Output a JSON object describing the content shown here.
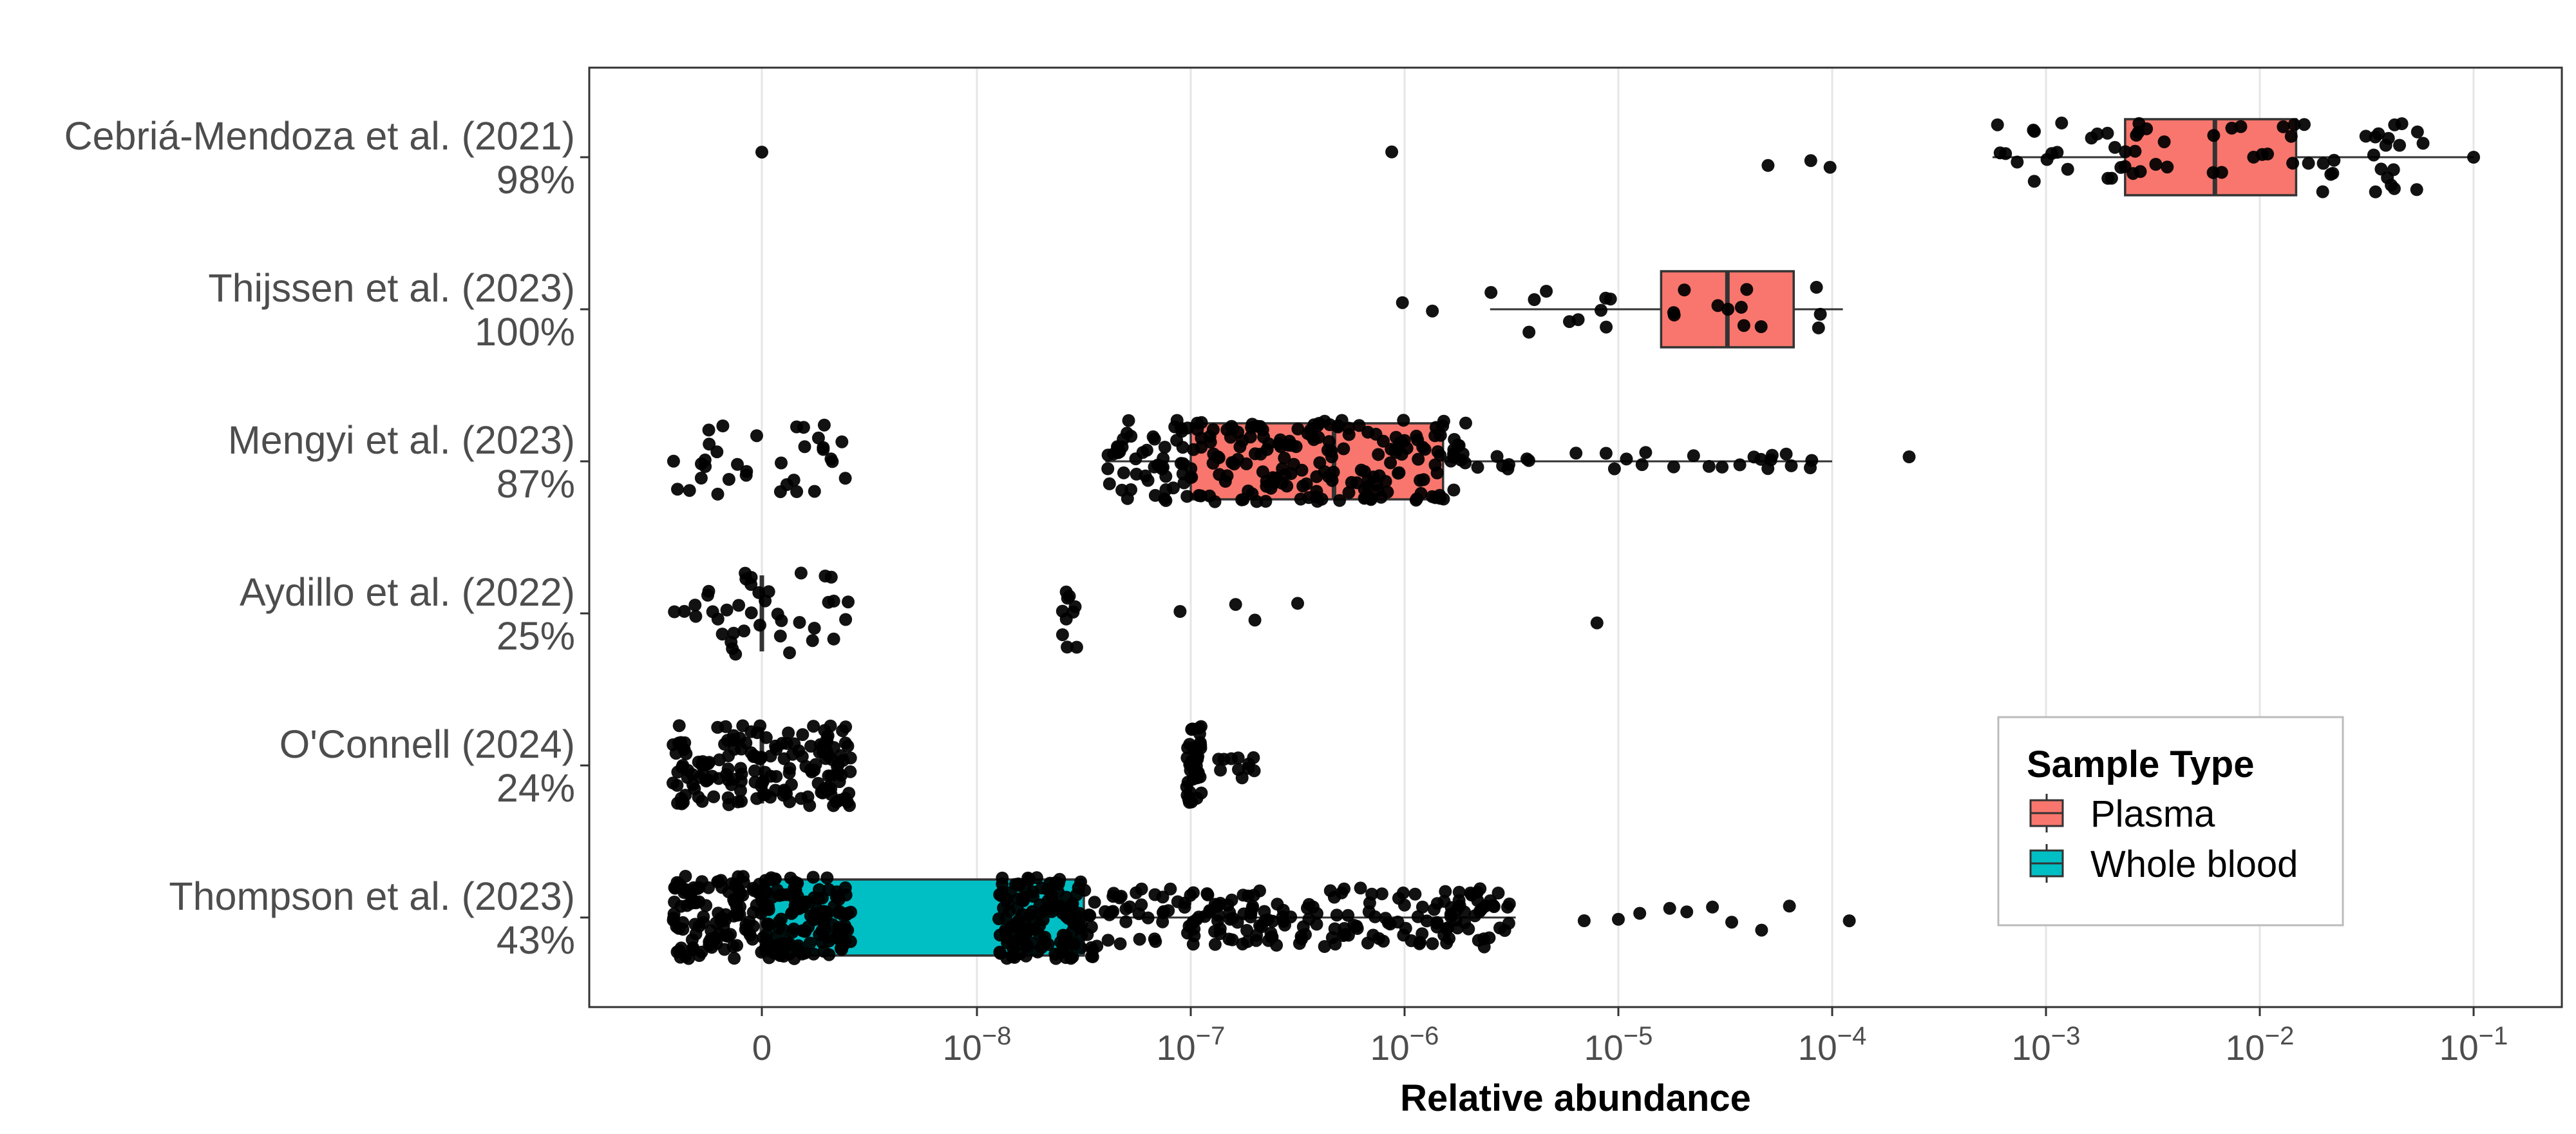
{
  "chart_data": {
    "type": "box",
    "x_scale": "pseudo-log10 (0 then decades)",
    "x_ticks": [
      "0",
      "10^-8",
      "10^-7",
      "10^-6",
      "10^-5",
      "10^-4",
      "10^-3",
      "10^-2",
      "10^-1"
    ],
    "x_tick_labels": [
      {
        "base": "0",
        "exp": ""
      },
      {
        "base": "10",
        "exp": "−8"
      },
      {
        "base": "10",
        "exp": "−7"
      },
      {
        "base": "10",
        "exp": "−6"
      },
      {
        "base": "10",
        "exp": "−5"
      },
      {
        "base": "10",
        "exp": "−4"
      },
      {
        "base": "10",
        "exp": "−3"
      },
      {
        "base": "10",
        "exp": "−2"
      },
      {
        "base": "10",
        "exp": "−1"
      }
    ],
    "xlabel": "Relative abundance",
    "ylabel": "",
    "grid": "vertical major",
    "legend": {
      "title": "Sample Type",
      "placement": "bottom-right inside",
      "items": [
        {
          "name": "Plasma",
          "color": "#f8766d"
        },
        {
          "name": "Whole blood",
          "color": "#00bfc4"
        }
      ]
    },
    "studies": [
      {
        "name": "Cebriá-Mendoza et al. (2021)",
        "pct": "98%",
        "sample_type": "Plasma",
        "box": {
          "q1_log": -2.63,
          "median_log": -2.21,
          "q3_log": -1.83,
          "wlo_log": -3.25,
          "whi_log": -1.0
        },
        "outliers_log": [
          "zero",
          -6.06,
          -4.3,
          -4.1,
          -4.01
        ]
      },
      {
        "name": "Thijssen et al. (2023)",
        "pct": "100%",
        "sample_type": "Plasma",
        "box": {
          "q1_log": -4.8,
          "median_log": -4.49,
          "q3_log": -4.18,
          "wlo_log": -5.6,
          "whi_log": -3.95
        },
        "outliers_log": [
          -6.01,
          -5.87
        ]
      },
      {
        "name": "Mengyi et al. (2023)",
        "pct": "87%",
        "sample_type": "Plasma",
        "box": {
          "q1_log": -7.0,
          "median_log": -6.33,
          "q3_log": -5.82,
          "wlo_log": -7.4,
          "whi_log": -4.0
        },
        "outliers_log": [
          -3.64
        ]
      },
      {
        "name": "Aydillo et al. (2022)",
        "pct": "25%",
        "sample_type": "Whole blood",
        "box": {
          "q1_log": "zero",
          "median_log": "zero",
          "q3_log": "zero",
          "wlo_log": "zero",
          "whi_log": "zero"
        },
        "outliers_log": [
          -7.55,
          -7.6,
          -7.05,
          -6.7,
          -6.5,
          -6.79,
          -5.1
        ]
      },
      {
        "name": "O'Connell (2024)",
        "pct": "24%",
        "sample_type": "Whole blood",
        "box": {
          "q1_log": "zero",
          "median_log": "zero",
          "q3_log": "zero",
          "wlo_log": "zero",
          "whi_log": "zero"
        },
        "outliers_log": [
          -7.0,
          -6.87,
          -6.76
        ]
      },
      {
        "name": "Thompson et al. (2023)",
        "pct": "43%",
        "sample_type": "Whole blood",
        "box": {
          "q1_log": "zero",
          "median_log": "zero",
          "q3_log": -7.5,
          "wlo_log": "zero",
          "whi_log": -5.48
        },
        "outliers_log": [
          -5.16,
          -5.0,
          -4.9,
          -4.76,
          -4.68,
          -4.56,
          -4.47,
          -4.33,
          -4.2,
          -3.92
        ]
      }
    ]
  }
}
